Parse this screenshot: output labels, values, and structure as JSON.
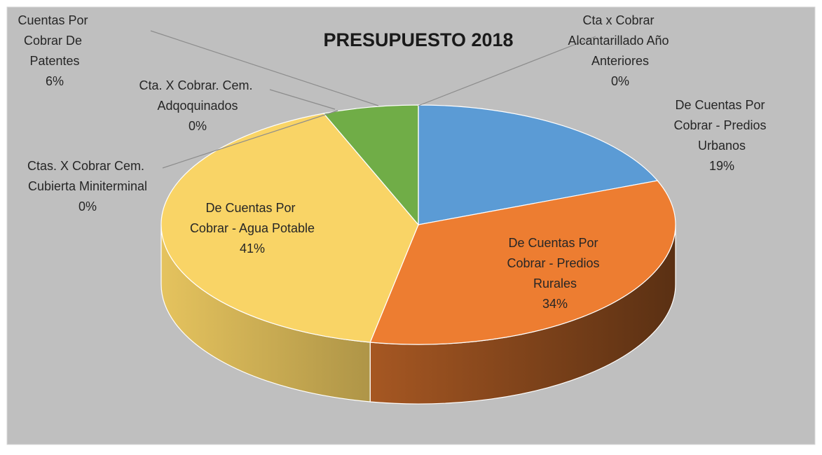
{
  "chart_data": {
    "type": "pie3d",
    "title": "PRESUPUESTO 2018",
    "categories": [
      "De Cuentas Por Cobrar - Predios Urbanos",
      "De Cuentas Por Cobrar - Predios Rurales",
      "De Cuentas Por Cobrar - Agua Potable",
      "Ctas. X Cobrar Cem. Cubierta Miniterminal",
      "Cta. X Cobrar. Cem. Adqoquinados",
      "Cuentas Por Cobrar De Patentes",
      "Cta x Cobrar Alcantarillado Año Anteriores"
    ],
    "values": [
      19,
      34,
      41,
      0,
      0,
      6,
      0
    ],
    "value_labels": [
      "19%",
      "34%",
      "41%",
      "0%",
      "0%",
      "6%",
      "0%"
    ],
    "colors": [
      "#5b9bd5",
      "#ed7d31",
      "#f9d466",
      "#a5a5a5",
      "#4472c4",
      "#70ad47",
      "#264478"
    ]
  }
}
